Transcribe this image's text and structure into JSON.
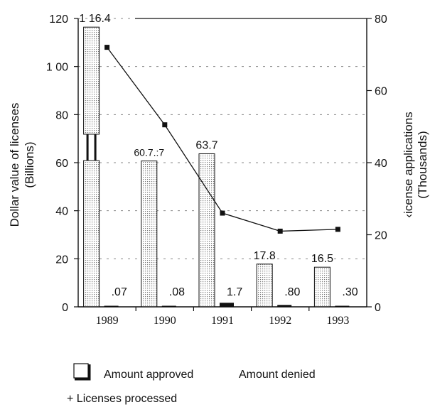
{
  "chart_data": {
    "type": "bar",
    "categories": [
      "1989",
      "1990",
      "1991",
      "1992",
      "1993"
    ],
    "series": [
      {
        "name": "Amount approved",
        "axis": "left",
        "kind": "bar",
        "pattern": "dotted",
        "values": [
          116.4,
          60.7,
          63.7,
          17.8,
          16.5
        ],
        "labels": [
          "1 16.4",
          "60.7.:7",
          "63.7",
          "17.8",
          "16.5"
        ]
      },
      {
        "name": "Amount denied",
        "axis": "left",
        "kind": "bar",
        "pattern": "solid",
        "values": [
          0.07,
          0.08,
          1.7,
          0.8,
          0.3
        ],
        "labels": [
          ".07",
          ".08",
          "1.7",
          ".80",
          ".30"
        ]
      },
      {
        "name": "Licenses processed",
        "axis": "right",
        "kind": "line",
        "values": [
          72,
          50.5,
          26,
          21,
          21.5
        ]
      }
    ],
    "ylabel_left": [
      "Dollar value of licenses",
      "(Billions)"
    ],
    "ylabel_right": [
      "‹icense applications",
      "(Thousands)"
    ],
    "ylim_left": [
      0,
      120
    ],
    "ylim_right": [
      0,
      80
    ],
    "yticks_left": [
      "0",
      "20",
      "40",
      "60",
      "80",
      "1 00",
      "120"
    ],
    "yticks_right": [
      "0",
      "20",
      "40",
      "60",
      "80"
    ],
    "axis_break": {
      "series": 0,
      "category": 0
    },
    "grid": "dashed",
    "legend": {
      "position": "bottom",
      "items": [
        "Amount approved",
        "Amount denied",
        "+ Licenses processed"
      ]
    }
  }
}
